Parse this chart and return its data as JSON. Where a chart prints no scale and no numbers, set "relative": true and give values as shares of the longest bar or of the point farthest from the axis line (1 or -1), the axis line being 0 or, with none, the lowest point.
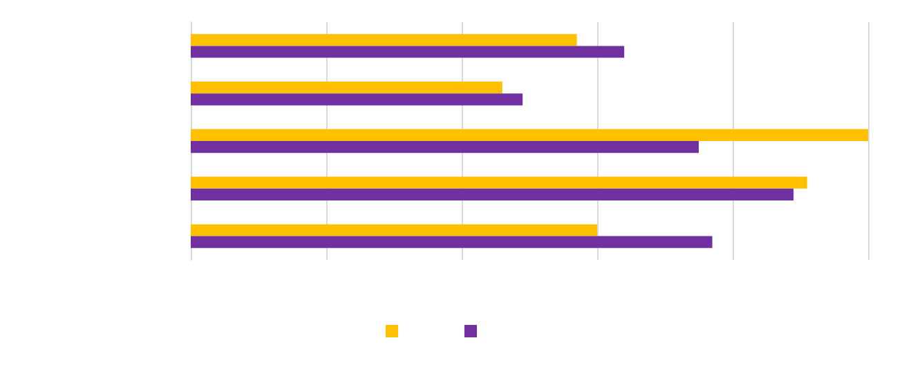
{
  "chart_data": {
    "type": "bar",
    "orientation": "horizontal",
    "relative": true,
    "grid": "x",
    "categories": [
      null,
      null,
      null,
      null,
      null
    ],
    "series": [
      {
        "color": "#ffc000",
        "values": [
          0.57,
          0.46,
          1,
          0.91,
          0.6
        ]
      },
      {
        "color": "#7030a0",
        "values": [
          0.64,
          0.49,
          0.75,
          0.89,
          0.77
        ]
      }
    ]
  }
}
